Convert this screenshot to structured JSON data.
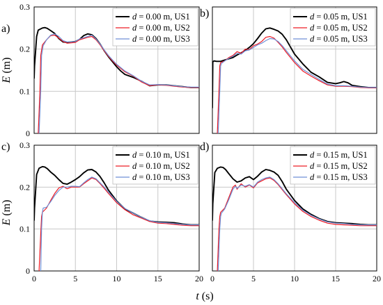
{
  "figure": {
    "ylabel": {
      "italic": "E",
      "rest": " (m)"
    },
    "xlabel": {
      "italic": "t",
      "rest": " (s)"
    }
  },
  "series_colors": {
    "US1": "#000000",
    "US2": "#ee1c25",
    "US3": "#6f8fd6"
  },
  "chart_data": [
    {
      "type": "line",
      "panel_label": "a)",
      "xlim": [
        0,
        20
      ],
      "ylim": [
        0,
        0.3
      ],
      "xticks": [
        "0",
        "5",
        "10",
        "15",
        "20"
      ],
      "yticks": [
        "0",
        "0.1",
        "0.2",
        "0.3"
      ],
      "show_xticks": false,
      "show_yticks": true,
      "grid": true,
      "legend": "top-right",
      "legend_entries": [
        {
          "var": "d",
          "text": " = 0.00 m, US1"
        },
        {
          "var": "d",
          "text": " = 0.00 m, US2"
        },
        {
          "var": "d",
          "text": " = 0.00 m, US3"
        }
      ],
      "series": [
        {
          "name": "d = 0.00 m, US1",
          "color_key": "US1",
          "x": [
            0,
            0.05,
            0.3,
            0.5,
            1,
            1.3,
            1.6,
            2,
            2.5,
            3,
            3.5,
            4,
            4.5,
            5,
            5.5,
            6,
            6.5,
            7,
            7.5,
            8,
            8.5,
            9,
            9.5,
            10,
            10.5,
            11,
            12,
            13,
            14,
            15,
            16,
            17,
            18,
            19,
            20
          ],
          "y": [
            0.13,
            0.16,
            0.23,
            0.245,
            0.25,
            0.251,
            0.249,
            0.244,
            0.237,
            0.225,
            0.217,
            0.216,
            0.217,
            0.218,
            0.223,
            0.232,
            0.236,
            0.234,
            0.225,
            0.212,
            0.196,
            0.182,
            0.17,
            0.158,
            0.148,
            0.14,
            0.133,
            0.124,
            0.113,
            0.115,
            0.115,
            0.113,
            0.111,
            0.109,
            0.109
          ]
        },
        {
          "name": "d = 0.00 m, US2",
          "color_key": "US2",
          "x": [
            0.5,
            0.7,
            0.8,
            1,
            1.5,
            2,
            2.5,
            3,
            3.5,
            4,
            4.5,
            5,
            5.5,
            6,
            6.5,
            7,
            7.5,
            8,
            8.5,
            9,
            9.5,
            10,
            11,
            12,
            13,
            14,
            15,
            16,
            17,
            18,
            19,
            20
          ],
          "y": [
            0,
            0.1,
            0.185,
            0.21,
            0.222,
            0.232,
            0.233,
            0.226,
            0.218,
            0.214,
            0.215,
            0.216,
            0.222,
            0.225,
            0.228,
            0.23,
            0.222,
            0.21,
            0.196,
            0.183,
            0.172,
            0.162,
            0.146,
            0.136,
            0.122,
            0.113,
            0.115,
            0.114,
            0.112,
            0.11,
            0.109,
            0.109
          ]
        },
        {
          "name": "d = 0.00 m, US3",
          "color_key": "US3",
          "x": [
            0.6,
            0.8,
            0.9,
            1.1,
            1.5,
            2,
            2.5,
            3,
            3.5,
            4,
            4.5,
            5,
            5.5,
            6,
            6.5,
            7,
            7.5,
            8,
            8.5,
            9,
            9.5,
            10,
            11,
            12,
            13,
            14,
            15,
            16,
            17,
            18,
            19,
            20
          ],
          "y": [
            0,
            0.1,
            0.185,
            0.208,
            0.222,
            0.233,
            0.236,
            0.23,
            0.22,
            0.217,
            0.217,
            0.218,
            0.224,
            0.227,
            0.23,
            0.233,
            0.224,
            0.212,
            0.198,
            0.185,
            0.174,
            0.164,
            0.148,
            0.137,
            0.124,
            0.115,
            0.116,
            0.115,
            0.113,
            0.111,
            0.11,
            0.11
          ]
        }
      ]
    },
    {
      "type": "line",
      "panel_label": "b)",
      "xlim": [
        0,
        20
      ],
      "ylim": [
        0,
        0.3
      ],
      "xticks": [
        "0",
        "5",
        "10",
        "15",
        "20"
      ],
      "yticks": [
        "0",
        "0.1",
        "0.2",
        "0.3"
      ],
      "show_xticks": false,
      "show_yticks": false,
      "grid": true,
      "legend": "top-right",
      "legend_entries": [
        {
          "var": "d",
          "text": " = 0.05 m, US1"
        },
        {
          "var": "d",
          "text": " = 0.05 m, US2"
        },
        {
          "var": "d",
          "text": " = 0.05 m, US3"
        }
      ],
      "series": [
        {
          "name": "d = 0.05 m, US1",
          "color_key": "US1",
          "x": [
            0,
            0.05,
            0.2,
            0.5,
            1,
            1.5,
            2,
            2.5,
            3,
            3.5,
            4,
            4.5,
            5,
            5.5,
            6,
            6.5,
            7,
            7.5,
            8,
            8.5,
            9,
            9.5,
            10,
            11,
            12,
            13,
            14,
            15,
            15.5,
            16,
            16.5,
            17,
            18,
            19,
            20
          ],
          "y": [
            0.06,
            0.17,
            0.172,
            0.171,
            0.171,
            0.174,
            0.177,
            0.18,
            0.186,
            0.191,
            0.197,
            0.204,
            0.213,
            0.225,
            0.238,
            0.248,
            0.25,
            0.247,
            0.243,
            0.235,
            0.222,
            0.205,
            0.188,
            0.165,
            0.145,
            0.134,
            0.121,
            0.118,
            0.12,
            0.123,
            0.12,
            0.114,
            0.111,
            0.109,
            0.109
          ]
        },
        {
          "name": "d = 0.05 m, US2",
          "color_key": "US2",
          "x": [
            0.6,
            0.8,
            0.9,
            1,
            1.5,
            2,
            2.5,
            3,
            3.5,
            4,
            4.5,
            5,
            5.5,
            6,
            6.5,
            7,
            7.5,
            8,
            8.5,
            9,
            10,
            11,
            12,
            13,
            14,
            15,
            16,
            17,
            18,
            19,
            20
          ],
          "y": [
            0,
            0.1,
            0.16,
            0.168,
            0.172,
            0.18,
            0.185,
            0.194,
            0.19,
            0.2,
            0.199,
            0.208,
            0.212,
            0.218,
            0.228,
            0.23,
            0.226,
            0.216,
            0.205,
            0.192,
            0.168,
            0.148,
            0.136,
            0.125,
            0.115,
            0.112,
            0.112,
            0.111,
            0.109,
            0.108,
            0.108
          ]
        },
        {
          "name": "d = 0.05 m, US3",
          "color_key": "US3",
          "x": [
            0.7,
            0.9,
            1,
            1.1,
            1.5,
            2,
            2.5,
            3,
            3.5,
            4,
            4.5,
            5,
            5.5,
            6,
            6.5,
            7,
            7.5,
            8,
            8.5,
            9,
            10,
            11,
            12,
            13,
            14,
            15,
            16,
            17,
            18,
            19,
            20
          ],
          "y": [
            0,
            0.1,
            0.16,
            0.166,
            0.172,
            0.178,
            0.183,
            0.19,
            0.188,
            0.196,
            0.198,
            0.204,
            0.21,
            0.214,
            0.22,
            0.225,
            0.224,
            0.218,
            0.208,
            0.196,
            0.172,
            0.152,
            0.14,
            0.128,
            0.117,
            0.113,
            0.113,
            0.112,
            0.11,
            0.109,
            0.109
          ]
        }
      ]
    },
    {
      "type": "line",
      "panel_label": "c)",
      "xlim": [
        0,
        20
      ],
      "ylim": [
        0,
        0.3
      ],
      "xticks": [
        "0",
        "5",
        "10",
        "15",
        "20"
      ],
      "yticks": [
        "0",
        "0.1",
        "0.2",
        "0.3"
      ],
      "show_xticks": true,
      "show_yticks": true,
      "grid": true,
      "legend": "top-right",
      "legend_entries": [
        {
          "var": "d",
          "text": " = 0.10 m, US1"
        },
        {
          "var": "d",
          "text": " = 0.10 m, US2"
        },
        {
          "var": "d",
          "text": " = 0.10 m, US3"
        }
      ],
      "series": [
        {
          "name": "d = 0.10 m, US1",
          "color_key": "US1",
          "x": [
            0,
            0.05,
            0.3,
            0.6,
            1,
            1.3,
            1.6,
            2,
            2.5,
            3,
            3.5,
            4,
            4.5,
            5,
            5.5,
            6,
            6.5,
            7,
            7.5,
            8,
            8.5,
            9,
            10,
            11,
            12,
            13,
            14,
            15,
            16,
            17,
            18,
            19,
            20
          ],
          "y": [
            0.12,
            0.15,
            0.23,
            0.245,
            0.249,
            0.248,
            0.244,
            0.236,
            0.228,
            0.218,
            0.209,
            0.207,
            0.212,
            0.218,
            0.225,
            0.234,
            0.241,
            0.242,
            0.236,
            0.225,
            0.21,
            0.193,
            0.167,
            0.148,
            0.138,
            0.128,
            0.119,
            0.117,
            0.116,
            0.115,
            0.112,
            0.11,
            0.11
          ]
        },
        {
          "name": "d = 0.10 m, US2",
          "color_key": "US2",
          "x": [
            0.6,
            0.8,
            0.9,
            1,
            1.5,
            2,
            2.5,
            3,
            3.5,
            4,
            4.5,
            5,
            5.5,
            6,
            6.5,
            7,
            7.5,
            8,
            8.5,
            9,
            10,
            11,
            12,
            13,
            14,
            15,
            16,
            17,
            18,
            19,
            20
          ],
          "y": [
            0,
            0.09,
            0.13,
            0.14,
            0.15,
            0.168,
            0.185,
            0.198,
            0.202,
            0.196,
            0.2,
            0.2,
            0.2,
            0.208,
            0.215,
            0.222,
            0.218,
            0.208,
            0.197,
            0.185,
            0.163,
            0.146,
            0.134,
            0.126,
            0.118,
            0.114,
            0.113,
            0.111,
            0.109,
            0.108,
            0.108
          ]
        },
        {
          "name": "d = 0.10 m, US3",
          "color_key": "US3",
          "x": [
            0.8,
            0.9,
            1,
            1.1,
            1.5,
            2,
            2.5,
            3,
            3.5,
            4,
            4.5,
            5,
            5.5,
            6,
            6.5,
            7,
            7.5,
            8,
            8.5,
            9,
            10,
            11,
            12,
            13,
            14,
            15,
            16,
            17,
            18,
            19,
            20
          ],
          "y": [
            0,
            0.1,
            0.14,
            0.15,
            0.152,
            0.165,
            0.18,
            0.192,
            0.2,
            0.2,
            0.202,
            0.202,
            0.201,
            0.21,
            0.218,
            0.224,
            0.22,
            0.21,
            0.2,
            0.188,
            0.166,
            0.149,
            0.138,
            0.128,
            0.12,
            0.116,
            0.115,
            0.113,
            0.111,
            0.11,
            0.11
          ]
        }
      ]
    },
    {
      "type": "line",
      "panel_label": "d)",
      "xlim": [
        0,
        20
      ],
      "ylim": [
        0,
        0.3
      ],
      "xticks": [
        "0",
        "5",
        "10",
        "15",
        "20"
      ],
      "yticks": [
        "0",
        "0.1",
        "0.2",
        "0.3"
      ],
      "show_xticks": true,
      "show_yticks": false,
      "grid": true,
      "legend": "top-right",
      "legend_entries": [
        {
          "var": "d",
          "text": " = 0.15 m, US1"
        },
        {
          "var": "d",
          "text": " = 0.15 m, US2"
        },
        {
          "var": "d",
          "text": " = 0.15 m, US3"
        }
      ],
      "series": [
        {
          "name": "d = 0.15 m, US1",
          "color_key": "US1",
          "x": [
            0,
            0.05,
            0.3,
            0.6,
            1,
            1.3,
            1.6,
            2,
            2.5,
            3,
            3.5,
            4,
            4.5,
            5,
            5.5,
            6,
            6.5,
            7,
            7.5,
            8,
            8.5,
            9,
            10,
            11,
            12,
            13,
            14,
            15,
            16,
            17,
            18,
            19,
            20
          ],
          "y": [
            0.12,
            0.16,
            0.235,
            0.245,
            0.248,
            0.247,
            0.242,
            0.232,
            0.22,
            0.212,
            0.215,
            0.222,
            0.225,
            0.218,
            0.226,
            0.236,
            0.242,
            0.24,
            0.236,
            0.228,
            0.213,
            0.195,
            0.168,
            0.148,
            0.135,
            0.125,
            0.118,
            0.115,
            0.114,
            0.113,
            0.111,
            0.11,
            0.11
          ]
        },
        {
          "name": "d = 0.15 m, US2",
          "color_key": "US2",
          "x": [
            0.6,
            0.8,
            0.9,
            1,
            1.5,
            2,
            2.5,
            2.8,
            3,
            3.5,
            4,
            4.5,
            5,
            5.5,
            6,
            6.5,
            7,
            7.5,
            8,
            8.5,
            9,
            10,
            11,
            12,
            13,
            14,
            15,
            16,
            17,
            18,
            19,
            20
          ],
          "y": [
            0,
            0.1,
            0.13,
            0.14,
            0.15,
            0.175,
            0.2,
            0.205,
            0.195,
            0.208,
            0.2,
            0.205,
            0.198,
            0.21,
            0.215,
            0.22,
            0.222,
            0.216,
            0.206,
            0.194,
            0.182,
            0.16,
            0.142,
            0.13,
            0.121,
            0.114,
            0.111,
            0.11,
            0.109,
            0.108,
            0.108,
            0.108
          ]
        },
        {
          "name": "d = 0.15 m, US3",
          "color_key": "US3",
          "x": [
            0.7,
            0.9,
            1,
            1.1,
            1.5,
            2,
            2.5,
            2.8,
            3,
            3.5,
            4,
            4.5,
            5,
            5.5,
            6,
            6.5,
            7,
            7.5,
            8,
            8.5,
            9,
            10,
            11,
            12,
            13,
            14,
            15,
            16,
            17,
            18,
            19,
            20
          ],
          "y": [
            0,
            0.1,
            0.13,
            0.138,
            0.148,
            0.17,
            0.195,
            0.202,
            0.197,
            0.205,
            0.202,
            0.206,
            0.2,
            0.212,
            0.218,
            0.222,
            0.224,
            0.218,
            0.208,
            0.196,
            0.184,
            0.163,
            0.145,
            0.133,
            0.124,
            0.117,
            0.114,
            0.113,
            0.111,
            0.11,
            0.11,
            0.11
          ]
        }
      ]
    }
  ]
}
